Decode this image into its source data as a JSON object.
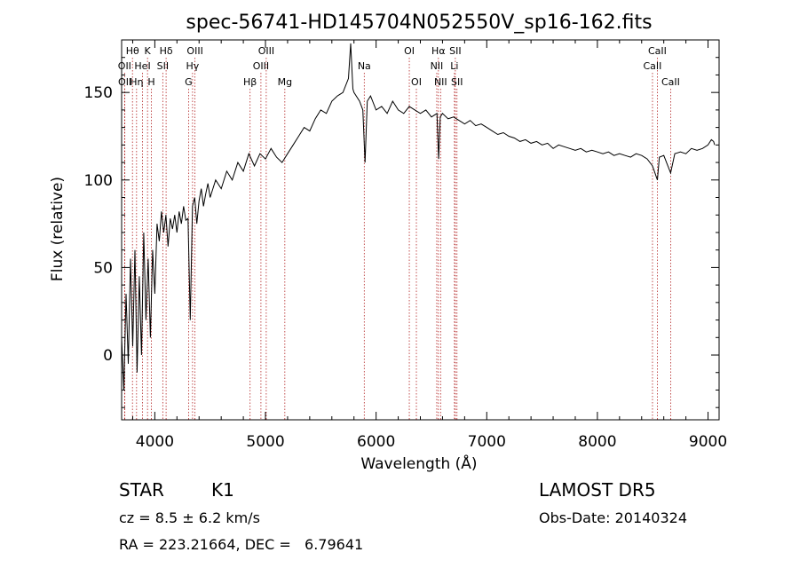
{
  "chart_data": {
    "type": "line",
    "title": "spec-56741-HD145704N052550V_sp16-162.fits",
    "xlabel": "Wavelength (Å)",
    "ylabel": "Flux (relative)",
    "xlim": [
      3700,
      9100
    ],
    "ylim": [
      -37,
      180
    ],
    "xticks": [
      4000,
      5000,
      6000,
      7000,
      8000,
      9000
    ],
    "yticks": [
      0,
      50,
      100,
      150
    ],
    "grid": false,
    "line_color": "#000000",
    "marker_color": "#b22222",
    "series": [
      {
        "values": [
          [
            3700,
            10
          ],
          [
            3720,
            -20
          ],
          [
            3740,
            35
          ],
          [
            3760,
            -5
          ],
          [
            3780,
            55
          ],
          [
            3800,
            5
          ],
          [
            3820,
            60
          ],
          [
            3840,
            -10
          ],
          [
            3860,
            45
          ],
          [
            3880,
            0
          ],
          [
            3900,
            70
          ],
          [
            3920,
            20
          ],
          [
            3940,
            55
          ],
          [
            3960,
            10
          ],
          [
            3980,
            60
          ],
          [
            4000,
            35
          ],
          [
            4020,
            75
          ],
          [
            4040,
            65
          ],
          [
            4060,
            82
          ],
          [
            4080,
            70
          ],
          [
            4100,
            80
          ],
          [
            4120,
            62
          ],
          [
            4140,
            78
          ],
          [
            4160,
            72
          ],
          [
            4180,
            80
          ],
          [
            4200,
            70
          ],
          [
            4220,
            82
          ],
          [
            4240,
            75
          ],
          [
            4260,
            85
          ],
          [
            4280,
            77
          ],
          [
            4300,
            78
          ],
          [
            4320,
            20
          ],
          [
            4340,
            85
          ],
          [
            4360,
            90
          ],
          [
            4380,
            75
          ],
          [
            4400,
            88
          ],
          [
            4420,
            95
          ],
          [
            4440,
            85
          ],
          [
            4460,
            92
          ],
          [
            4480,
            98
          ],
          [
            4500,
            90
          ],
          [
            4550,
            100
          ],
          [
            4600,
            95
          ],
          [
            4650,
            105
          ],
          [
            4700,
            100
          ],
          [
            4750,
            110
          ],
          [
            4800,
            105
          ],
          [
            4850,
            115
          ],
          [
            4900,
            108
          ],
          [
            4950,
            115
          ],
          [
            5000,
            112
          ],
          [
            5050,
            118
          ],
          [
            5100,
            113
          ],
          [
            5150,
            110
          ],
          [
            5200,
            115
          ],
          [
            5250,
            120
          ],
          [
            5300,
            125
          ],
          [
            5350,
            130
          ],
          [
            5400,
            128
          ],
          [
            5450,
            135
          ],
          [
            5500,
            140
          ],
          [
            5550,
            138
          ],
          [
            5600,
            145
          ],
          [
            5650,
            148
          ],
          [
            5700,
            150
          ],
          [
            5750,
            158
          ],
          [
            5770,
            178
          ],
          [
            5790,
            152
          ],
          [
            5800,
            150
          ],
          [
            5850,
            145
          ],
          [
            5880,
            140
          ],
          [
            5900,
            110
          ],
          [
            5920,
            145
          ],
          [
            5950,
            148
          ],
          [
            6000,
            140
          ],
          [
            6050,
            142
          ],
          [
            6100,
            138
          ],
          [
            6150,
            145
          ],
          [
            6200,
            140
          ],
          [
            6250,
            138
          ],
          [
            6300,
            142
          ],
          [
            6350,
            140
          ],
          [
            6400,
            138
          ],
          [
            6450,
            140
          ],
          [
            6500,
            136
          ],
          [
            6550,
            138
          ],
          [
            6565,
            112
          ],
          [
            6580,
            136
          ],
          [
            6600,
            138
          ],
          [
            6650,
            135
          ],
          [
            6700,
            136
          ],
          [
            6750,
            134
          ],
          [
            6800,
            132
          ],
          [
            6850,
            134
          ],
          [
            6900,
            131
          ],
          [
            6950,
            132
          ],
          [
            7000,
            130
          ],
          [
            7050,
            128
          ],
          [
            7100,
            126
          ],
          [
            7150,
            127
          ],
          [
            7200,
            125
          ],
          [
            7250,
            124
          ],
          [
            7300,
            122
          ],
          [
            7350,
            123
          ],
          [
            7400,
            121
          ],
          [
            7450,
            122
          ],
          [
            7500,
            120
          ],
          [
            7550,
            121
          ],
          [
            7600,
            118
          ],
          [
            7650,
            120
          ],
          [
            7700,
            119
          ],
          [
            7750,
            118
          ],
          [
            7800,
            117
          ],
          [
            7850,
            118
          ],
          [
            7900,
            116
          ],
          [
            7950,
            117
          ],
          [
            8000,
            116
          ],
          [
            8050,
            115
          ],
          [
            8100,
            116
          ],
          [
            8150,
            114
          ],
          [
            8200,
            115
          ],
          [
            8250,
            114
          ],
          [
            8300,
            113
          ],
          [
            8350,
            115
          ],
          [
            8400,
            114
          ],
          [
            8450,
            112
          ],
          [
            8498,
            108
          ],
          [
            8542,
            100
          ],
          [
            8560,
            113
          ],
          [
            8600,
            114
          ],
          [
            8662,
            104
          ],
          [
            8700,
            115
          ],
          [
            8750,
            116
          ],
          [
            8800,
            115
          ],
          [
            8850,
            118
          ],
          [
            8900,
            117
          ],
          [
            8950,
            118
          ],
          [
            9000,
            120
          ],
          [
            9030,
            123
          ],
          [
            9050,
            122
          ],
          [
            9060,
            120
          ]
        ]
      }
    ],
    "lines": [
      {
        "label": "Hθ",
        "x": 3798,
        "row": 0
      },
      {
        "label": "OII",
        "x": 3727,
        "row": 1
      },
      {
        "label": "OII",
        "x": 3729,
        "row": 2
      },
      {
        "label": "K",
        "x": 3934,
        "row": 0
      },
      {
        "label": "HeI",
        "x": 3889,
        "row": 1
      },
      {
        "label": "Hη",
        "x": 3835,
        "row": 2
      },
      {
        "label": "Hδ",
        "x": 4102,
        "row": 0
      },
      {
        "label": "SII",
        "x": 4072,
        "row": 1
      },
      {
        "label": "H",
        "x": 3969,
        "row": 2
      },
      {
        "label": "OIII",
        "x": 4363,
        "row": 0
      },
      {
        "label": "Hγ",
        "x": 4341,
        "row": 1
      },
      {
        "label": "G",
        "x": 4305,
        "row": 2
      },
      {
        "label": "OIII",
        "x": 5007,
        "row": 0
      },
      {
        "label": "OIII",
        "x": 4959,
        "row": 1
      },
      {
        "label": "Hβ",
        "x": 4861,
        "row": 2
      },
      {
        "label": "Mg",
        "x": 5175,
        "row": 2
      },
      {
        "label": "Na",
        "x": 5893,
        "row": 1
      },
      {
        "label": "OI",
        "x": 6300,
        "row": 0
      },
      {
        "label": "OI",
        "x": 6364,
        "row": 2
      },
      {
        "label": "Hα",
        "x": 6563,
        "row": 0
      },
      {
        "label": "NII",
        "x": 6548,
        "row": 1
      },
      {
        "label": "NII",
        "x": 6583,
        "row": 2
      },
      {
        "label": "SII",
        "x": 6716,
        "row": 0
      },
      {
        "label": "Li",
        "x": 6708,
        "row": 1
      },
      {
        "label": "SII",
        "x": 6731,
        "row": 2
      },
      {
        "label": "CaII",
        "x": 8542,
        "row": 0
      },
      {
        "label": "CaII",
        "x": 8498,
        "row": 1
      },
      {
        "label": "CaII",
        "x": 8662,
        "row": 2
      }
    ]
  },
  "info": {
    "class_label": "STAR",
    "subclass": "K1",
    "cz": "cz = 8.5 ± 6.2 km/s",
    "radec": "RA = 223.21664, DEC =   6.79641",
    "survey": "LAMOST DR5",
    "obsdate": "Obs-Date: 20140324"
  }
}
